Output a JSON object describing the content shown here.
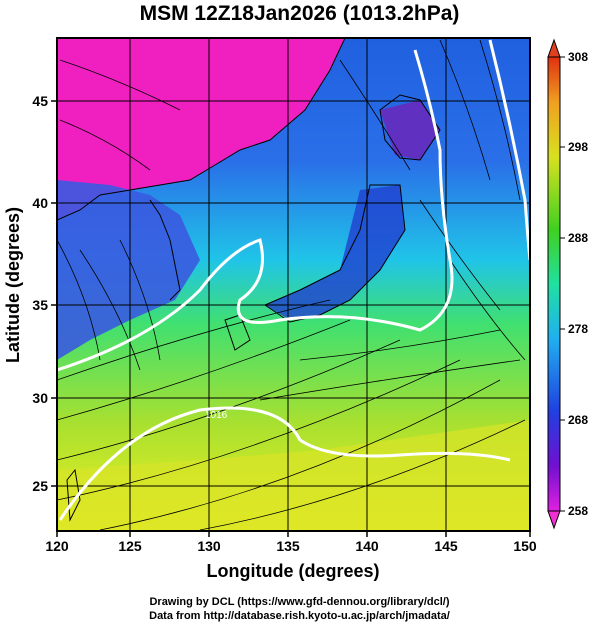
{
  "title": "MSM 12Z18Jan2026 (1013.2hPa)",
  "xaxis": {
    "label": "Longitude (degrees)",
    "ticks": [
      "120",
      "125",
      "130",
      "135",
      "140",
      "145",
      "150"
    ]
  },
  "yaxis": {
    "label": "Latitude  (degrees)",
    "ticks": [
      "25",
      "30",
      "35",
      "40",
      "45"
    ]
  },
  "colorbar": {
    "ticks": [
      "258",
      "268",
      "278",
      "288",
      "298",
      "308"
    ]
  },
  "contours": {
    "label": "1016"
  },
  "colors": {
    "frame": "#000000",
    "contour": "#ffffff",
    "streamline": "#000000"
  },
  "credits": [
    "Drawing by DCL (https://www.gfd-dennou.org/library/dcl/)",
    "Data from http://database.rish.kyoto-u.ac.jp/arch/jmadata/"
  ]
}
